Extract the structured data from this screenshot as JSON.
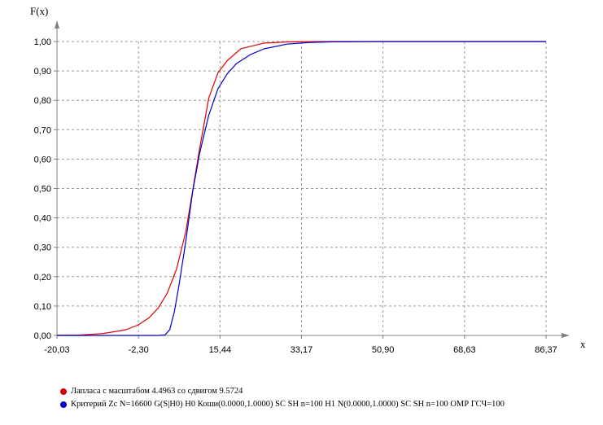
{
  "chart_data": {
    "type": "line",
    "xlabel": "x",
    "ylabel": "F(x)",
    "xlim": [
      -20.03,
      86.37
    ],
    "ylim": [
      0,
      1
    ],
    "x_ticks": [
      "-20,03",
      "-2,30",
      "15,44",
      "33,17",
      "50,90",
      "68,63",
      "86,37"
    ],
    "y_ticks": [
      "0,00",
      "0,10",
      "0,20",
      "0,30",
      "0,40",
      "0,50",
      "0,60",
      "0,70",
      "0,80",
      "0,90",
      "1,00"
    ],
    "grid": true,
    "legend_position": "bottom-left",
    "series": [
      {
        "name": "Лапласа с масштабом 4.4963 со сдвигом 9.5724",
        "color": "#dd0000",
        "x": [
          -20.03,
          -15,
          -10,
          -5,
          -2.3,
          0,
          2,
          4,
          6,
          8,
          9.57,
          11,
          13,
          15,
          17,
          20,
          25,
          30,
          35,
          40,
          50,
          60,
          70,
          86.37
        ],
        "y": [
          0.0007,
          0.0015,
          0.0064,
          0.0195,
          0.036,
          0.06,
          0.093,
          0.145,
          0.226,
          0.353,
          0.5,
          0.636,
          0.808,
          0.894,
          0.935,
          0.9755,
          0.9948,
          0.9985,
          0.9997,
          0.99998,
          1.0,
          1.0,
          1.0,
          1.0
        ]
      },
      {
        "name": "Критерий Zc N=16600 G(S|H0) H0 Коши(0.0000,1.0000) SC SH  n=100 H1 N(0.0000,1.0000) SC SH  n=100  ОМР  ГСЧ=100",
        "color": "#0000cc",
        "x": [
          -20.03,
          2,
          3.5,
          4.5,
          5.5,
          6.5,
          8,
          9.5,
          11,
          13,
          15,
          17,
          19,
          22,
          25,
          30,
          35,
          40,
          50,
          60,
          70,
          86.37
        ],
        "y": [
          0.0,
          0.0,
          0.002,
          0.02,
          0.08,
          0.17,
          0.32,
          0.49,
          0.62,
          0.75,
          0.84,
          0.89,
          0.925,
          0.955,
          0.975,
          0.991,
          0.997,
          0.999,
          0.9999,
          1.0,
          1.0,
          1.0
        ]
      }
    ]
  }
}
